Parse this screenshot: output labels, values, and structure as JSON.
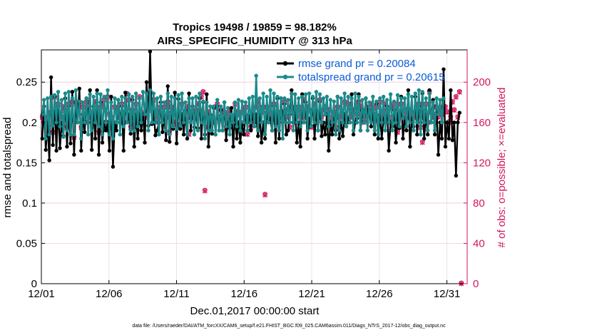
{
  "chart_data": {
    "type": "line",
    "title": "Tropics 19498 / 19859 = 98.182%",
    "subtitle": "AIRS_SPECIFIC_HUMIDITY @ 313 hPa",
    "xlabel": "Dec.01,2017 00:00:00 start",
    "ylabel": "rmse and totalspread",
    "ylabel_right": "# of obs: o=possible; ×=evaluated",
    "x_ticks": [
      "12/01",
      "12/06",
      "12/11",
      "12/16",
      "12/21",
      "12/26",
      "12/31"
    ],
    "x_tick_days": [
      0,
      5,
      10,
      15,
      20,
      25,
      30
    ],
    "xlim": [
      0,
      31.5
    ],
    "ylim": [
      0,
      0.29
    ],
    "y_ticks": [
      "0",
      "0.05",
      "0.1",
      "0.15",
      "0.2",
      "0.25"
    ],
    "y_tick_values": [
      0,
      0.05,
      0.1,
      0.15,
      0.2,
      0.25
    ],
    "ylim_right": [
      0,
      232
    ],
    "y_ticks_right": [
      "0",
      "40",
      "80",
      "120",
      "160",
      "200"
    ],
    "y_tick_values_right": [
      0,
      40,
      80,
      120,
      160,
      200
    ],
    "footnote": "data file: /Users/raeder/DAI/ATM_forcXX/CAM6_setup/f.e21.FHIST_BGC.f09_025.CAM6assim.011/Diags_NTrS_2017-12/obs_diag_output.nc",
    "series": [
      {
        "name": "rmse grand pr = 0.20084",
        "color": "#000000",
        "values": [
          0.18,
          0.22,
          0.166,
          0.2,
          0.153,
          0.256,
          0.172,
          0.232,
          0.165,
          0.22,
          0.168,
          0.2,
          0.183,
          0.23,
          0.17,
          0.22,
          0.174,
          0.238,
          0.16,
          0.225,
          0.2,
          0.242,
          0.165,
          0.21,
          0.188,
          0.23,
          0.2,
          0.24,
          0.166,
          0.22,
          0.18,
          0.24,
          0.16,
          0.225,
          0.175,
          0.2,
          0.19,
          0.2,
          0.165,
          0.232,
          0.145,
          0.2,
          0.19,
          0.228,
          0.2,
          0.22,
          0.165,
          0.237,
          0.2,
          0.21,
          0.186,
          0.228,
          0.17,
          0.21,
          0.18,
          0.21,
          0.19,
          0.21,
          0.175,
          0.25,
          0.196,
          0.288,
          0.198,
          0.214,
          0.184,
          0.19,
          0.2,
          0.225,
          0.188,
          0.21,
          0.178,
          0.245,
          0.176,
          0.213,
          0.192,
          0.237,
          0.174,
          0.229,
          0.192,
          0.21,
          0.185,
          0.215,
          0.18,
          0.236,
          0.19,
          0.22,
          0.194,
          0.212,
          0.193,
          0.23,
          0.18,
          0.225,
          0.185,
          0.235,
          0.17,
          0.21,
          0.186,
          0.218,
          0.185,
          0.22,
          0.19,
          0.215,
          0.19,
          0.225,
          0.178,
          0.205,
          0.193,
          0.218,
          0.17,
          0.21,
          0.18,
          0.2,
          0.175,
          0.197,
          0.185,
          0.21,
          0.2,
          0.208,
          0.19,
          0.21,
          0.2,
          0.21,
          0.183,
          0.209,
          0.175,
          0.2,
          0.18,
          0.213,
          0.2,
          0.205,
          0.19,
          0.22,
          0.175,
          0.23,
          0.18,
          0.23,
          0.2,
          0.223,
          0.185,
          0.19,
          0.21,
          0.24,
          0.2,
          0.215,
          0.175,
          0.2,
          0.17,
          0.235,
          0.2,
          0.225,
          0.18,
          0.205,
          0.196,
          0.23,
          0.18,
          0.215,
          0.19,
          0.226,
          0.183,
          0.2,
          0.185,
          0.21,
          0.165,
          0.2,
          0.185,
          0.205,
          0.19,
          0.232,
          0.18,
          0.2,
          0.183,
          0.21,
          0.2,
          0.205,
          0.2,
          0.235,
          0.185,
          0.2,
          0.205,
          0.235,
          0.19,
          0.215,
          0.2,
          0.23,
          0.21,
          0.215,
          0.195,
          0.215,
          0.185,
          0.223,
          0.18,
          0.21,
          0.18,
          0.205,
          0.2,
          0.22,
          0.165,
          0.2,
          0.195,
          0.215,
          0.175,
          0.21,
          0.193,
          0.232,
          0.18,
          0.205,
          0.19,
          0.24,
          0.17,
          0.205,
          0.195,
          0.232,
          0.185,
          0.22,
          0.2,
          0.236,
          0.18,
          0.21,
          0.185,
          0.24,
          0.2,
          0.228,
          0.185,
          0.22,
          0.16,
          0.2,
          0.18,
          0.266,
          0.17,
          0.2,
          0.18,
          0.24,
          0.178,
          0.2,
          0.134,
          0.2,
          0.212
        ]
      },
      {
        "name": "totalspread grand pr = 0.20615",
        "color": "#1a8a8a",
        "values": [
          0.21,
          0.228,
          0.18,
          0.23,
          0.185,
          0.232,
          0.196,
          0.234,
          0.2,
          0.238,
          0.195,
          0.228,
          0.182,
          0.236,
          0.19,
          0.238,
          0.185,
          0.23,
          0.185,
          0.24,
          0.2,
          0.226,
          0.18,
          0.225,
          0.2,
          0.23,
          0.185,
          0.235,
          0.19,
          0.232,
          0.2,
          0.236,
          0.195,
          0.235,
          0.185,
          0.232,
          0.2,
          0.24,
          0.185,
          0.225,
          0.18,
          0.23,
          0.2,
          0.228,
          0.185,
          0.232,
          0.195,
          0.23,
          0.2,
          0.235,
          0.19,
          0.232,
          0.19,
          0.236,
          0.195,
          0.23,
          0.2,
          0.238,
          0.21,
          0.236,
          0.19,
          0.24,
          0.2,
          0.236,
          0.2,
          0.23,
          0.185,
          0.232,
          0.2,
          0.225,
          0.19,
          0.236,
          0.185,
          0.232,
          0.195,
          0.23,
          0.192,
          0.234,
          0.196,
          0.236,
          0.2,
          0.225,
          0.185,
          0.23,
          0.2,
          0.23,
          0.185,
          0.232,
          0.19,
          0.236,
          0.2,
          0.226,
          0.18,
          0.225,
          0.19,
          0.22,
          0.19,
          0.22,
          0.185,
          0.228,
          0.19,
          0.22,
          0.19,
          0.225,
          0.195,
          0.218,
          0.185,
          0.21,
          0.2,
          0.225,
          0.195,
          0.228,
          0.19,
          0.226,
          0.2,
          0.225,
          0.19,
          0.23,
          0.2,
          0.232,
          0.195,
          0.258,
          0.19,
          0.23,
          0.2,
          0.236,
          0.185,
          0.232,
          0.2,
          0.24,
          0.19,
          0.236,
          0.195,
          0.232,
          0.19,
          0.23,
          0.18,
          0.23,
          0.2,
          0.228,
          0.2,
          0.236,
          0.19,
          0.235,
          0.2,
          0.23,
          0.195,
          0.232,
          0.2,
          0.235,
          0.19,
          0.236,
          0.195,
          0.232,
          0.2,
          0.238,
          0.19,
          0.235,
          0.2,
          0.23,
          0.21,
          0.232,
          0.195,
          0.228,
          0.2,
          0.226,
          0.185,
          0.232,
          0.19,
          0.23,
          0.2,
          0.236,
          0.195,
          0.232,
          0.2,
          0.23,
          0.19,
          0.236,
          0.2,
          0.232,
          0.19,
          0.228,
          0.2,
          0.23,
          0.19,
          0.225,
          0.2,
          0.232,
          0.19,
          0.226,
          0.185,
          0.23,
          0.2,
          0.232,
          0.19,
          0.228,
          0.2,
          0.235,
          0.19,
          0.226,
          0.2,
          0.234,
          0.195,
          0.23,
          0.205,
          0.23,
          0.195,
          0.235,
          0.2,
          0.232,
          0.19,
          0.236,
          0.2,
          0.24,
          0.185,
          0.238,
          0.2,
          0.23,
          0.19,
          0.236,
          0.2,
          0.225,
          0.19,
          0.23,
          0.21,
          0.228,
          0.2,
          0.23
        ]
      },
      {
        "name": "obs possible / evaluated",
        "color": "#d3165e",
        "values": [
          165,
          160,
          162,
          165,
          168,
          170,
          150,
          185,
          160,
          178,
          168,
          165,
          175,
          172,
          155,
          178,
          162,
          180,
          145,
          178,
          172,
          180,
          155,
          175,
          160,
          180,
          170,
          165,
          165,
          170,
          180,
          168,
          150,
          175,
          178,
          182,
          160,
          185,
          168,
          165,
          155,
          175,
          172,
          168,
          165,
          178,
          160,
          170,
          188,
          182,
          155,
          172,
          158,
          178,
          165,
          185,
          170,
          160,
          165,
          172,
          172,
          190,
          178,
          182,
          160,
          165,
          170,
          175,
          168,
          175,
          165,
          180,
          150,
          175,
          172,
          160,
          158,
          155,
          168,
          178,
          160,
          170,
          175,
          148,
          165,
          168,
          170,
          172,
          178,
          172,
          185,
          190,
          92,
          155,
          170,
          165,
          165,
          160,
          175,
          178,
          165,
          172,
          170,
          170,
          155,
          168,
          172,
          160,
          165,
          178,
          170,
          168,
          160,
          170,
          172,
          175,
          148,
          165,
          155,
          168,
          160,
          175,
          180,
          165,
          170,
          175,
          88,
          175,
          170,
          165,
          165,
          178,
          168,
          160,
          165,
          170,
          170,
          180,
          172,
          165,
          155,
          175,
          172,
          160,
          165,
          175,
          170,
          165,
          182,
          165,
          175,
          172,
          155,
          170,
          178,
          160,
          165,
          182,
          165,
          172,
          175,
          168,
          172,
          160,
          165,
          170,
          155,
          175,
          165,
          165,
          168,
          180,
          160,
          178,
          165,
          170,
          172,
          160,
          168,
          180,
          175,
          172,
          160,
          165,
          170,
          175,
          178,
          168,
          162,
          175,
          165,
          180,
          170,
          165,
          178,
          172,
          165,
          160,
          175,
          178,
          172,
          150,
          165,
          178,
          168,
          160,
          172,
          165,
          172,
          168,
          165,
          170,
          170,
          178,
          155,
          140,
          165,
          178,
          160,
          190,
          170,
          165,
          175,
          168,
          165,
          172,
          168,
          175,
          175,
          170,
          160,
          165,
          180,
          172,
          185,
          165,
          190,
          0
        ]
      }
    ]
  }
}
